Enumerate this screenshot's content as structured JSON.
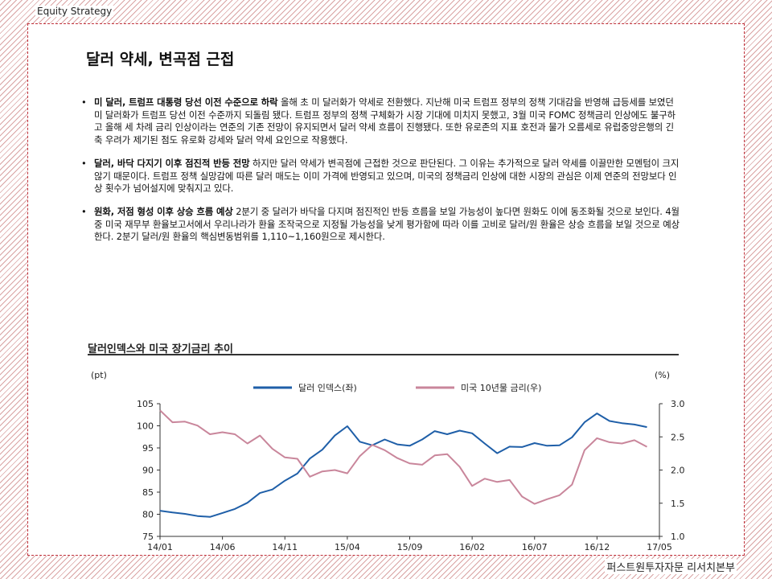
{
  "header": {
    "label": "Equity  Strategy"
  },
  "footer": {
    "label": "퍼스트원투자자문 리서치본부"
  },
  "title": "달러 약세, 변곡점 근접",
  "bullets": [
    {
      "bold": "미 달러, 트럼프 대통령 당선 이전 수준으로 하락",
      "text": " 올해 초 미 달러화가 약세로 전환했다. 지난해 미국 트럼프 정부의 정책 기대감을 반영해 급등세를 보였던 미 달러화가 트럼프 당선 이전 수준까지 되돌림 됐다. 트럼프 정부의 정책 구체화가 시장 기대에 미치지 못했고, 3월 미국 FOMC 정책금리 인상에도 불구하고 올해 세 차례 금리 인상이라는 연준의 기존 전망이 유지되면서 달러 약세 흐름이 진행됐다. 또한 유로존의 지표 호전과 물가 오름세로 유럽중앙은행의 긴축 우려가 제기된 점도 유로화 강세와 달러 약세 요인으로 작용했다."
    },
    {
      "bold": "달러, 바닥 다지기 이후 점진적 반등 전망",
      "text": " 하지만 달러 약세가 변곡점에 근접한 것으로 판단된다. 그 이유는 추가적으로 달러 약세를 이끌만한 모멘텀이 크지 않기 때문이다. 트럼프 정책 실망감에 따른 달러 매도는 이미 가격에 반영되고 있으며, 미국의 정책금리 인상에 대한 시장의 관심은 이제 연준의 전망보다 인상 횟수가 넘어설지에 맞춰지고 있다."
    },
    {
      "bold": "원화, 저점 형성 이후 상승 흐름 예상",
      "text": " 2분기 중 달러가 바닥을 다지며 점진적인 반등 흐름을 보일 가능성이 높다면 원화도 이에 동조화될 것으로 보인다. 4월 중 미국 재무부 환율보고서에서 우리나라가 환율 조작국으로 지정될 가능성을 낮게 평가함에 따라 이를 고비로 달러/원 환율은 상승 흐름을 보일 것으로 예상한다. 2분기 달러/원 환율의 핵심변동범위를 1,110~1,160원으로 제시한다."
    }
  ],
  "chart_data": {
    "type": "line",
    "title": "달러인덱스와 미국 장기금리 추이",
    "left_unit": "(pt)",
    "right_unit": "(%)",
    "x_ticks": [
      "14/01",
      "14/06",
      "14/11",
      "15/04",
      "15/09",
      "16/02",
      "16/07",
      "16/12",
      "17/05"
    ],
    "y_left": {
      "ylim": [
        75,
        105
      ],
      "ticks": [
        75,
        80,
        85,
        90,
        95,
        100,
        105
      ]
    },
    "y_right": {
      "ylim": [
        1.0,
        3.0
      ],
      "ticks": [
        "1.0",
        "1.5",
        "2.0",
        "2.5",
        "3.0"
      ]
    },
    "grid": false,
    "legend": "top",
    "series": [
      {
        "name": "달러 인덱스(좌)",
        "axis": "left",
        "color": "#1f5fa8",
        "points": [
          [
            "14/01",
            80.8
          ],
          [
            "14/02",
            80.4
          ],
          [
            "14/03",
            80.1
          ],
          [
            "14/04",
            79.6
          ],
          [
            "14/05",
            79.4
          ],
          [
            "14/06",
            80.3
          ],
          [
            "14/07",
            81.2
          ],
          [
            "14/08",
            82.6
          ],
          [
            "14/09",
            84.8
          ],
          [
            "14/10",
            85.6
          ],
          [
            "14/11",
            87.6
          ],
          [
            "14/12",
            89.2
          ],
          [
            "15/01",
            92.6
          ],
          [
            "15/02",
            94.6
          ],
          [
            "15/03",
            97.8
          ],
          [
            "15/04",
            99.9
          ],
          [
            "15/05",
            96.4
          ],
          [
            "15/06",
            95.6
          ],
          [
            "15/07",
            96.9
          ],
          [
            "15/08",
            95.8
          ],
          [
            "15/09",
            95.5
          ],
          [
            "15/10",
            96.9
          ],
          [
            "15/11",
            98.8
          ],
          [
            "15/12",
            98.1
          ],
          [
            "16/01",
            98.9
          ],
          [
            "16/02",
            98.3
          ],
          [
            "16/03",
            96.0
          ],
          [
            "16/04",
            93.8
          ],
          [
            "16/05",
            95.3
          ],
          [
            "16/06",
            95.2
          ],
          [
            "16/07",
            96.1
          ],
          [
            "16/08",
            95.5
          ],
          [
            "16/09",
            95.6
          ],
          [
            "16/10",
            97.4
          ],
          [
            "16/11",
            100.8
          ],
          [
            "16/12",
            102.8
          ],
          [
            "17/01",
            101.1
          ],
          [
            "17/02",
            100.6
          ],
          [
            "17/03",
            100.3
          ],
          [
            "17/04",
            99.7
          ]
        ]
      },
      {
        "name": "미국 10년물 금리(우)",
        "axis": "right",
        "color": "#c9869b",
        "points": [
          [
            "14/01",
            2.9
          ],
          [
            "14/02",
            2.72
          ],
          [
            "14/03",
            2.73
          ],
          [
            "14/04",
            2.67
          ],
          [
            "14/05",
            2.54
          ],
          [
            "14/06",
            2.57
          ],
          [
            "14/07",
            2.54
          ],
          [
            "14/08",
            2.4
          ],
          [
            "14/09",
            2.52
          ],
          [
            "14/10",
            2.32
          ],
          [
            "14/11",
            2.19
          ],
          [
            "14/12",
            2.17
          ],
          [
            "15/01",
            1.9
          ],
          [
            "15/02",
            1.98
          ],
          [
            "15/03",
            2.0
          ],
          [
            "15/04",
            1.95
          ],
          [
            "15/05",
            2.21
          ],
          [
            "15/06",
            2.38
          ],
          [
            "15/07",
            2.3
          ],
          [
            "15/08",
            2.18
          ],
          [
            "15/09",
            2.1
          ],
          [
            "15/10",
            2.08
          ],
          [
            "15/11",
            2.22
          ],
          [
            "15/12",
            2.24
          ],
          [
            "16/01",
            2.05
          ],
          [
            "16/02",
            1.76
          ],
          [
            "16/03",
            1.87
          ],
          [
            "16/04",
            1.82
          ],
          [
            "16/05",
            1.85
          ],
          [
            "16/06",
            1.6
          ],
          [
            "16/07",
            1.49
          ],
          [
            "16/08",
            1.56
          ],
          [
            "16/09",
            1.62
          ],
          [
            "16/10",
            1.78
          ],
          [
            "16/11",
            2.3
          ],
          [
            "16/12",
            2.48
          ],
          [
            "17/01",
            2.42
          ],
          [
            "17/02",
            2.4
          ],
          [
            "17/03",
            2.45
          ],
          [
            "17/04",
            2.35
          ]
        ]
      }
    ]
  }
}
